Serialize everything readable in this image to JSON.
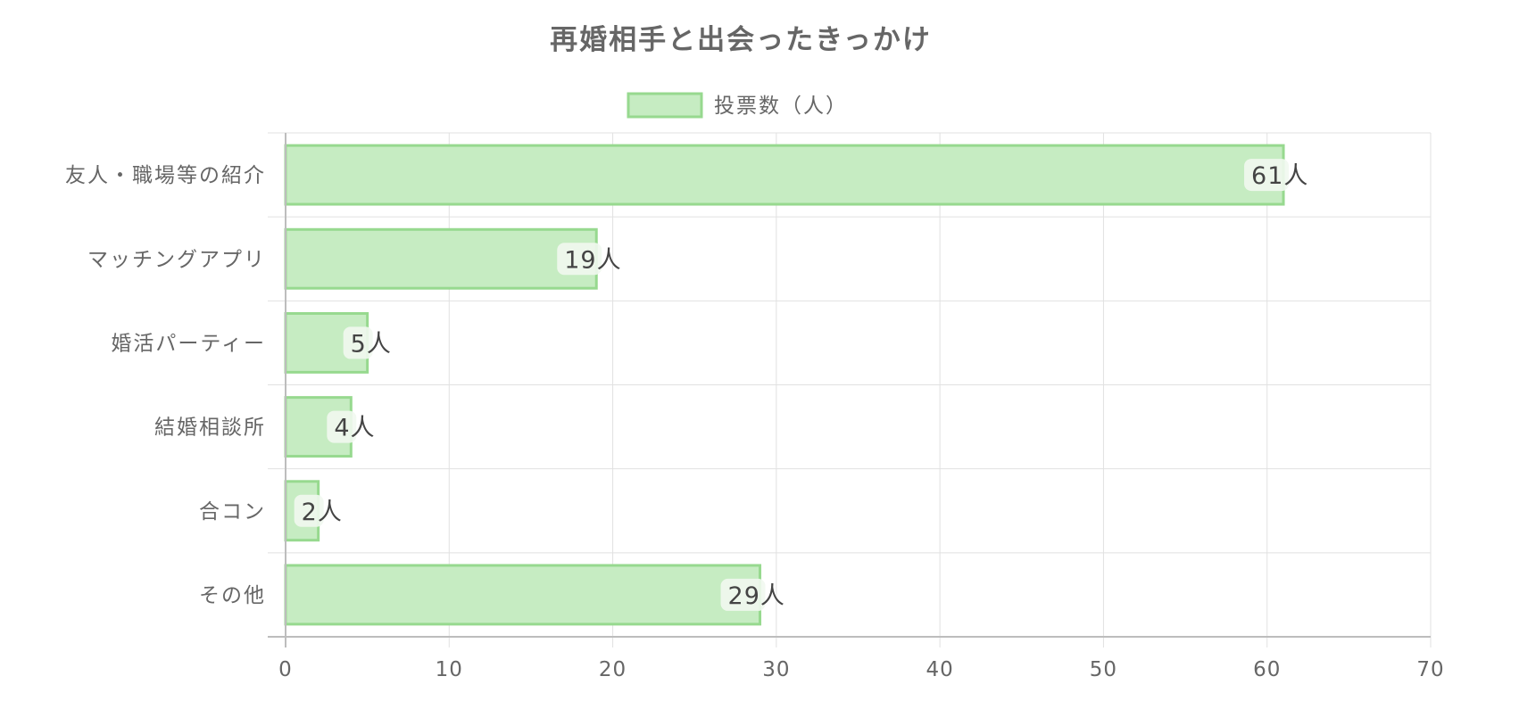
{
  "chart_data": {
    "type": "bar",
    "orientation": "horizontal",
    "title": "再婚相手と出会ったきっかけ",
    "categories": [
      "友人・職場等の紹介",
      "マッチングアプリ",
      "婚活パーティー",
      "結婚相談所",
      "合コン",
      "その他"
    ],
    "series": [
      {
        "name": "投票数（人）",
        "values": [
          61,
          19,
          5,
          4,
          2,
          29
        ]
      }
    ],
    "data_label_suffix": "人",
    "xlim": [
      0,
      70
    ],
    "xticks": [
      "0",
      "10",
      "20",
      "30",
      "40",
      "50",
      "60",
      "70"
    ],
    "grid": true,
    "legend_position": "top",
    "colors": {
      "bar_fill": "#c6ecc2",
      "bar_border": "#97d98f",
      "label_bg": "#f1f8ef",
      "text": "#666666"
    }
  }
}
